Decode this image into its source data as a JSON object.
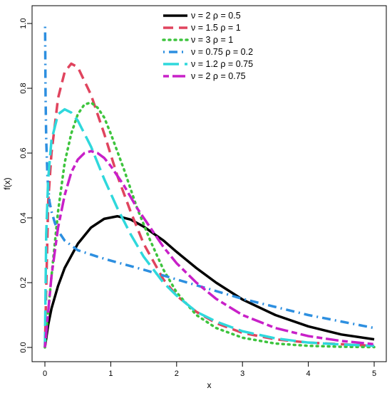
{
  "chart_data": {
    "type": "line",
    "title": "",
    "xlabel": "x",
    "ylabel": "f(x)",
    "xlim": [
      0,
      5
    ],
    "ylim": [
      0,
      1.0
    ],
    "x_ticks": [
      "0",
      "1",
      "2",
      "3",
      "4",
      "5"
    ],
    "y_ticks": [
      "0.0",
      "0.2",
      "0.4",
      "0.6",
      "0.8",
      "1.0"
    ],
    "legend_position": "top-center",
    "grid": false,
    "series": [
      {
        "name": "ν = 2  ρ = 0.5",
        "color": "#000000",
        "style": "solid",
        "x": [
          0,
          0.05,
          0.1,
          0.2,
          0.3,
          0.5,
          0.7,
          0.9,
          1.1,
          1.3,
          1.5,
          1.8,
          2.0,
          2.3,
          2.6,
          3.0,
          3.5,
          4.0,
          4.5,
          5.0
        ],
        "y": [
          0,
          0.07,
          0.12,
          0.19,
          0.245,
          0.32,
          0.37,
          0.397,
          0.405,
          0.395,
          0.373,
          0.33,
          0.295,
          0.245,
          0.2,
          0.148,
          0.1,
          0.065,
          0.04,
          0.025
        ]
      },
      {
        "name": "ν = 1.5  ρ = 1",
        "color": "#e0445e",
        "style": "dashed",
        "x": [
          0,
          0.05,
          0.1,
          0.2,
          0.3,
          0.4,
          0.5,
          0.7,
          0.9,
          1.1,
          1.3,
          1.5,
          1.8,
          2.0,
          2.3,
          2.6,
          3.0,
          3.5,
          4.0,
          4.5,
          5.0
        ],
        "y": [
          0,
          0.45,
          0.6,
          0.77,
          0.85,
          0.876,
          0.865,
          0.78,
          0.66,
          0.53,
          0.42,
          0.32,
          0.21,
          0.16,
          0.11,
          0.075,
          0.045,
          0.025,
          0.015,
          0.01,
          0.005
        ]
      },
      {
        "name": "ν = 3  ρ = 1",
        "color": "#3dc43d",
        "style": "dotted",
        "x": [
          0,
          0.1,
          0.2,
          0.3,
          0.4,
          0.5,
          0.6,
          0.7,
          0.8,
          0.9,
          1.0,
          1.2,
          1.4,
          1.6,
          1.8,
          2.0,
          2.3,
          2.6,
          3.0,
          3.5,
          4.0,
          4.5,
          5.0
        ],
        "y": [
          0,
          0.22,
          0.42,
          0.57,
          0.66,
          0.72,
          0.75,
          0.756,
          0.74,
          0.71,
          0.66,
          0.55,
          0.43,
          0.33,
          0.24,
          0.17,
          0.1,
          0.06,
          0.03,
          0.012,
          0.005,
          0.002,
          0.001
        ]
      },
      {
        "name": "ν = 0.75  ρ = 0.2",
        "color": "#2d8fe0",
        "style": "dotdash",
        "x": [
          0.003,
          0.01,
          0.02,
          0.04,
          0.07,
          0.1,
          0.15,
          0.2,
          0.3,
          0.5,
          0.8,
          1.0,
          1.5,
          2.0,
          2.5,
          3.0,
          3.5,
          4.0,
          4.5,
          5.0
        ],
        "y": [
          0.99,
          0.78,
          0.64,
          0.52,
          0.45,
          0.42,
          0.385,
          0.36,
          0.33,
          0.3,
          0.28,
          0.268,
          0.24,
          0.21,
          0.18,
          0.15,
          0.125,
          0.1,
          0.08,
          0.06
        ]
      },
      {
        "name": "ν = 1.2  ρ = 0.75",
        "color": "#2fd8dc",
        "style": "longdash",
        "x": [
          0,
          0.02,
          0.05,
          0.1,
          0.2,
          0.3,
          0.4,
          0.5,
          0.7,
          0.9,
          1.1,
          1.3,
          1.5,
          1.8,
          2.0,
          2.3,
          2.6,
          3.0,
          3.5,
          4.0,
          4.5,
          5.0
        ],
        "y": [
          0,
          0.35,
          0.52,
          0.64,
          0.72,
          0.735,
          0.725,
          0.7,
          0.62,
          0.52,
          0.43,
          0.35,
          0.28,
          0.2,
          0.16,
          0.11,
          0.08,
          0.05,
          0.028,
          0.015,
          0.009,
          0.005
        ]
      },
      {
        "name": "ν = 2  ρ = 0.75",
        "color": "#c820c8",
        "style": "twodash",
        "x": [
          0,
          0.1,
          0.2,
          0.3,
          0.4,
          0.5,
          0.6,
          0.7,
          0.8,
          0.9,
          1.0,
          1.2,
          1.4,
          1.6,
          1.8,
          2.0,
          2.3,
          2.6,
          3.0,
          3.5,
          4.0,
          4.5,
          5.0
        ],
        "y": [
          0,
          0.22,
          0.37,
          0.47,
          0.54,
          0.58,
          0.6,
          0.606,
          0.6,
          0.585,
          0.56,
          0.5,
          0.43,
          0.37,
          0.31,
          0.26,
          0.2,
          0.15,
          0.1,
          0.06,
          0.035,
          0.02,
          0.01
        ]
      }
    ]
  }
}
